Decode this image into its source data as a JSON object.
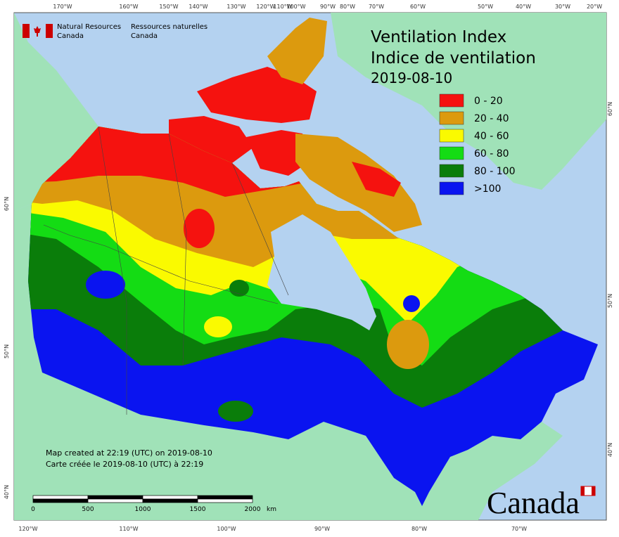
{
  "header": {
    "agency_en": [
      "Natural Resources",
      "Canada"
    ],
    "agency_fr": [
      "Ressources naturelles",
      "Canada"
    ]
  },
  "title": [
    "Ventilation Index",
    "Indice de ventilation",
    "2019-08-10"
  ],
  "legend": [
    {
      "label": "0 - 20",
      "color": "#f5120f"
    },
    {
      "label": "20 - 40",
      "color": "#dc9a0e"
    },
    {
      "label": "40 - 60",
      "color": "#fafa00"
    },
    {
      "label": "60 - 80",
      "color": "#14dc14"
    },
    {
      "label": "80 - 100",
      "color": "#0a7d0a"
    },
    {
      "label": ">100",
      "color": "#0a14f0"
    }
  ],
  "notes": [
    "Map created at 22:19 (UTC) on 2019-08-10",
    "Carte créée le 2019-08-10 (UTC) à 22:19"
  ],
  "scale": {
    "labels": [
      "0",
      "500",
      "1000",
      "1500",
      "2000"
    ],
    "unit": "km"
  },
  "graticule": {
    "top": [
      "170°W",
      "160°W",
      "150°W",
      "140°W",
      "130°W",
      "120°W",
      "110°W",
      "100°W",
      "90°W",
      "80°W",
      "70°W",
      "60°W",
      "50°W",
      "40°W",
      "30°W",
      "20°W"
    ],
    "bottom": [
      "120°W",
      "110°W",
      "100°W",
      "90°W",
      "80°W",
      "70°W"
    ],
    "left": [
      "60°N",
      "50°N",
      "40°N"
    ],
    "right": [
      "60°N",
      "50°N",
      "40°N"
    ]
  },
  "wordmark": "Canada"
}
